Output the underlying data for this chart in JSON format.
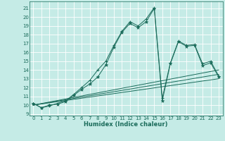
{
  "xlabel": "Humidex (Indice chaleur)",
  "bg_color": "#c5ebe6",
  "grid_color": "#ffffff",
  "line_color": "#1a6b5a",
  "ylim": [
    8.8,
    21.8
  ],
  "xlim": [
    -0.5,
    23.5
  ],
  "yticks": [
    9,
    10,
    11,
    12,
    13,
    14,
    15,
    16,
    17,
    18,
    19,
    20,
    21
  ],
  "xticks": [
    0,
    1,
    2,
    3,
    4,
    5,
    6,
    7,
    8,
    9,
    10,
    11,
    12,
    13,
    14,
    15,
    16,
    17,
    18,
    19,
    20,
    21,
    22,
    23
  ],
  "main_y": [
    10.2,
    9.7,
    10.0,
    10.1,
    10.4,
    11.1,
    11.8,
    12.4,
    13.2,
    14.6,
    16.6,
    18.3,
    19.3,
    18.8,
    19.5,
    21.0,
    10.5,
    14.7,
    17.2,
    16.7,
    16.8,
    14.5,
    14.8,
    13.2
  ],
  "curve2_y": [
    10.2,
    9.7,
    9.9,
    10.2,
    10.5,
    11.2,
    12.0,
    12.8,
    14.0,
    15.0,
    16.8,
    18.4,
    19.5,
    19.0,
    19.8,
    21.1,
    10.8,
    14.8,
    17.3,
    16.8,
    16.9,
    14.7,
    15.0,
    13.3
  ],
  "trend_starts": [
    10.0,
    10.0,
    10.0
  ],
  "trend_ends": [
    13.0,
    13.5,
    14.0
  ]
}
